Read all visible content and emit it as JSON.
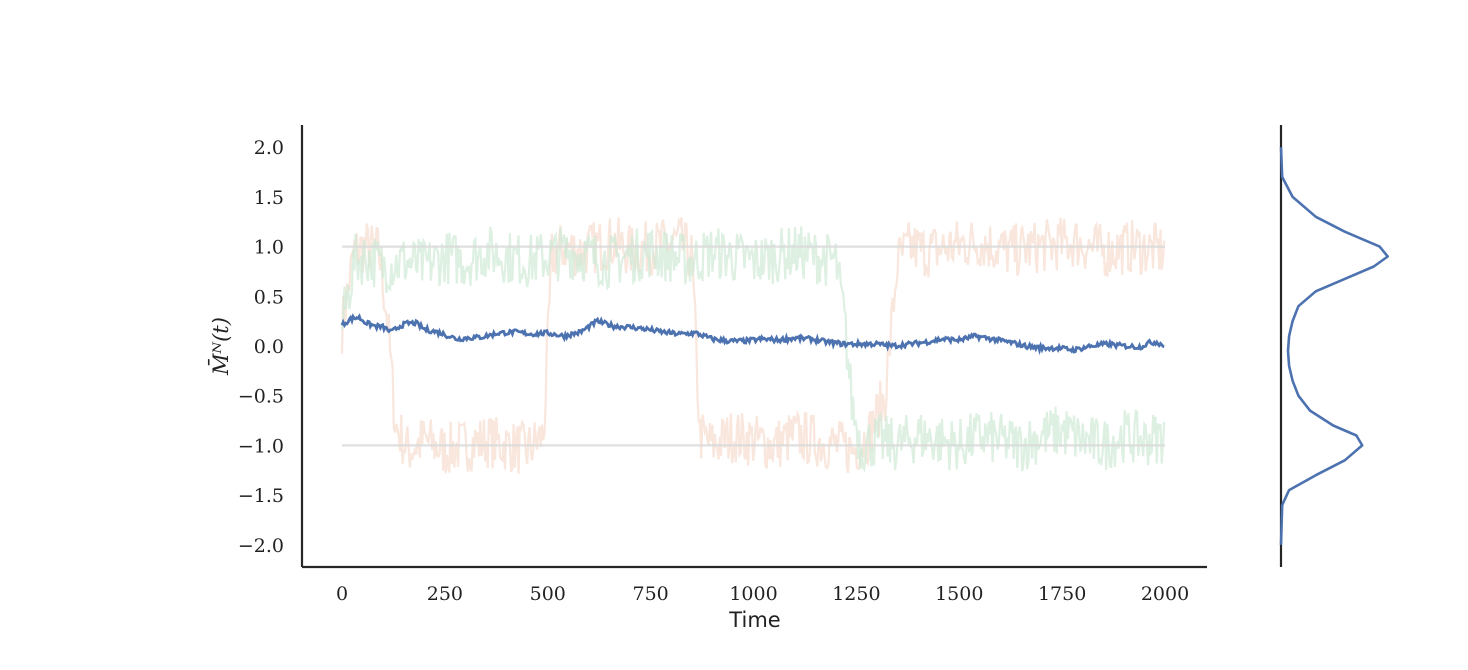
{
  "chart_data": [
    {
      "type": "line",
      "title": "",
      "xlabel": "Time",
      "ylabel": "M̄ᴺ(t)",
      "xlim": [
        -100,
        2100
      ],
      "ylim": [
        -2.22,
        2.22
      ],
      "xticks": [
        0,
        250,
        500,
        750,
        1000,
        1250,
        1500,
        1750,
        2000
      ],
      "yticks": [
        -2.0,
        -1.5,
        -1.0,
        -0.5,
        0.0,
        0.5,
        1.0,
        1.5,
        2.0
      ],
      "ytick_labels": [
        "−2.0",
        "−1.5",
        "−1.0",
        "−0.5",
        "0.0",
        "0.5",
        "1.0",
        "1.5",
        "2.0"
      ],
      "grid": false,
      "legend": "none",
      "reference_lines": [
        {
          "y": 1.0,
          "x": [
            0,
            2000
          ],
          "color": "#d9d9d9"
        },
        {
          "y": -1.0,
          "x": [
            0,
            2000
          ],
          "color": "#d9d9d9"
        }
      ],
      "series": [
        {
          "color": "#f7dccd",
          "style": "faint",
          "x": [
            0,
            30,
            60,
            90,
            110,
            130,
            160,
            200,
            250,
            300,
            350,
            400,
            450,
            490,
            510,
            540,
            580,
            620,
            660,
            700,
            760,
            820,
            850,
            870,
            900,
            950,
            1000,
            1050,
            1100,
            1150,
            1200,
            1240,
            1280,
            1320,
            1350,
            1380,
            1420,
            1480,
            1550,
            1620,
            1700,
            1780,
            1850,
            1920,
            2000
          ],
          "y": [
            0.2,
            0.95,
            1.0,
            0.95,
            0.3,
            -0.8,
            -1.05,
            -0.95,
            -1.05,
            -1.0,
            -0.95,
            -1.0,
            -1.05,
            -0.9,
            0.9,
            1.0,
            0.95,
            1.0,
            1.05,
            0.95,
            1.0,
            1.05,
            0.9,
            -0.9,
            -1.0,
            -0.9,
            -0.95,
            -1.0,
            -0.9,
            -0.95,
            -1.0,
            -1.05,
            -0.9,
            -0.5,
            0.85,
            1.0,
            0.95,
            1.0,
            1.05,
            0.95,
            1.0,
            1.05,
            0.95,
            1.0,
            0.95
          ]
        },
        {
          "color": "#cfe9d6",
          "style": "faint",
          "x": [
            0,
            30,
            60,
            100,
            150,
            200,
            250,
            300,
            350,
            400,
            450,
            500,
            550,
            600,
            650,
            700,
            750,
            800,
            850,
            900,
            950,
            1000,
            1050,
            1100,
            1150,
            1200,
            1220,
            1240,
            1260,
            1300,
            1350,
            1400,
            1450,
            1500,
            1550,
            1600,
            1650,
            1700,
            1750,
            1800,
            1850,
            1900,
            1950,
            2000
          ],
          "y": [
            0.2,
            0.85,
            0.9,
            0.8,
            0.85,
            0.8,
            0.9,
            0.85,
            0.95,
            0.9,
            0.85,
            0.9,
            0.95,
            0.9,
            0.85,
            0.9,
            0.95,
            0.9,
            0.85,
            0.95,
            0.9,
            0.85,
            0.9,
            0.95,
            0.9,
            0.85,
            0.3,
            -0.6,
            -1.0,
            -0.95,
            -1.0,
            -0.9,
            -0.95,
            -1.0,
            -0.9,
            -0.95,
            -1.0,
            -0.9,
            -0.85,
            -0.95,
            -1.0,
            -0.9,
            -0.95,
            -0.9
          ]
        },
        {
          "color": "#4c72b0",
          "style": "bold",
          "x": [
            0,
            20,
            40,
            60,
            80,
            100,
            120,
            140,
            160,
            180,
            200,
            220,
            240,
            260,
            280,
            300,
            340,
            380,
            420,
            460,
            500,
            540,
            580,
            620,
            660,
            700,
            740,
            780,
            820,
            860,
            900,
            940,
            980,
            1020,
            1060,
            1100,
            1140,
            1180,
            1220,
            1260,
            1300,
            1340,
            1380,
            1420,
            1460,
            1500,
            1540,
            1580,
            1620,
            1660,
            1700,
            1740,
            1780,
            1820,
            1860,
            1900,
            1940,
            1960,
            1980,
            2000
          ],
          "y": [
            0.21,
            0.27,
            0.29,
            0.23,
            0.2,
            0.19,
            0.14,
            0.2,
            0.23,
            0.23,
            0.17,
            0.15,
            0.13,
            0.1,
            0.07,
            0.08,
            0.09,
            0.13,
            0.14,
            0.12,
            0.13,
            0.1,
            0.14,
            0.25,
            0.2,
            0.19,
            0.17,
            0.14,
            0.12,
            0.13,
            0.07,
            0.05,
            0.05,
            0.07,
            0.06,
            0.08,
            0.07,
            0.04,
            0.02,
            0.02,
            0.02,
            0.0,
            0.02,
            0.04,
            0.07,
            0.06,
            0.1,
            0.07,
            0.04,
            0.0,
            -0.02,
            -0.02,
            -0.04,
            0.0,
            0.02,
            0.0,
            -0.01,
            0.03,
            0.04,
            0.0
          ]
        }
      ]
    },
    {
      "type": "area",
      "title": "",
      "xlabel": "",
      "ylabel": "",
      "ylim": [
        -2.22,
        2.22
      ],
      "grid": false,
      "legend": "none",
      "series": [
        {
          "color": "#4c72b0",
          "y": [
            -2.0,
            -1.6,
            -1.45,
            -1.3,
            -1.15,
            -1.0,
            -0.9,
            -0.8,
            -0.65,
            -0.5,
            -0.35,
            -0.2,
            -0.05,
            0.1,
            0.25,
            0.4,
            0.55,
            0.7,
            0.8,
            0.9,
            1.0,
            1.15,
            1.3,
            1.5,
            1.7,
            2.0
          ],
          "density": [
            0.0,
            0.01,
            0.07,
            0.3,
            0.55,
            0.7,
            0.65,
            0.45,
            0.25,
            0.15,
            0.1,
            0.07,
            0.06,
            0.07,
            0.1,
            0.15,
            0.3,
            0.6,
            0.8,
            0.92,
            0.85,
            0.55,
            0.3,
            0.1,
            0.01,
            0.0
          ]
        }
      ]
    }
  ]
}
